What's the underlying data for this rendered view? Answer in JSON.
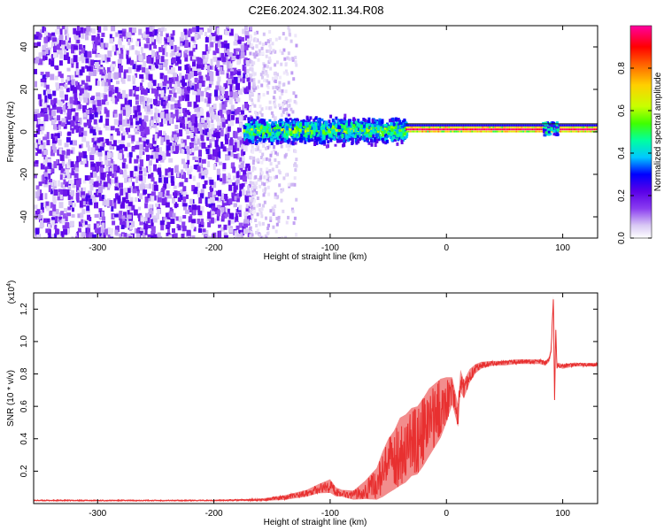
{
  "title": "C2E6.2024.302.11.34.R08",
  "chart_data": [
    {
      "type": "heatmap",
      "xlabel": "Height of straight line (km)",
      "ylabel": "Frequency (Hz)",
      "xlim": [
        -355,
        130
      ],
      "ylim": [
        -50,
        50
      ],
      "x_ticks": [
        -300,
        -200,
        -100,
        0,
        100
      ],
      "y_ticks": [
        -40,
        -20,
        0,
        20,
        40
      ],
      "colorbar": {
        "label": "Normalized spectral amplitude",
        "ticks": [
          0.0,
          0.2,
          0.4,
          0.6,
          0.8
        ],
        "range": [
          0,
          1
        ],
        "colors": [
          "#ffffff",
          "#d8c8f4",
          "#8a3cf0",
          "#5a00e8",
          "#0000ff",
          "#00c8ff",
          "#00ffa0",
          "#40ff00",
          "#c8ff00",
          "#ffd000",
          "#ff6000",
          "#ff0000",
          "#ff00a0"
        ]
      },
      "regions": [
        {
          "x": [
            -355,
            -170
          ],
          "freq": [
            -50,
            50
          ],
          "amplitude": 0.12,
          "pattern": "broadband scattered noise"
        },
        {
          "x": [
            -170,
            -130
          ],
          "freq": [
            -50,
            50
          ],
          "amplitude": 0.06,
          "pattern": "faint noise"
        },
        {
          "x": [
            -175,
            -35
          ],
          "freq": [
            -9,
            9
          ],
          "amplitude": 0.35,
          "pattern": "concentrated band"
        },
        {
          "x": [
            -35,
            130
          ],
          "freq": [
            0,
            3
          ],
          "amplitude": 1.0,
          "pattern": "narrow tone near 2 Hz"
        },
        {
          "x": [
            82,
            95
          ],
          "freq": [
            -1,
            5
          ],
          "amplitude": 0.4,
          "pattern": "local disturbance"
        }
      ]
    },
    {
      "type": "line",
      "xlabel": "Height of straight line (km)",
      "ylabel": "SNR (10 * v/v)",
      "y_multiplier": "(x10^4)",
      "y_mult_base": "(x10",
      "y_mult_exp": "4",
      "y_mult_close": ")",
      "xlim": [
        -355,
        130
      ],
      "ylim": [
        0,
        1.3
      ],
      "x_ticks": [
        -300,
        -200,
        -100,
        0,
        100
      ],
      "y_ticks": [
        0.2,
        0.4,
        0.6,
        0.8,
        1.0,
        1.2
      ],
      "color": "#e83030",
      "x": [
        -355,
        -300,
        -250,
        -200,
        -160,
        -140,
        -120,
        -110,
        -100,
        -95,
        -90,
        -80,
        -70,
        -60,
        -55,
        -50,
        -45,
        -40,
        -35,
        -30,
        -25,
        -20,
        -15,
        -10,
        -5,
        0,
        5,
        10,
        12,
        15,
        20,
        25,
        30,
        40,
        50,
        60,
        70,
        80,
        85,
        88,
        90,
        92,
        93,
        94,
        95,
        96,
        100,
        110,
        120,
        130
      ],
      "y": [
        0.02,
        0.02,
        0.02,
        0.02,
        0.025,
        0.04,
        0.07,
        0.1,
        0.12,
        0.08,
        0.07,
        0.06,
        0.1,
        0.15,
        0.22,
        0.28,
        0.32,
        0.38,
        0.4,
        0.44,
        0.45,
        0.5,
        0.56,
        0.6,
        0.64,
        0.68,
        0.72,
        0.56,
        0.78,
        0.72,
        0.8,
        0.84,
        0.86,
        0.87,
        0.87,
        0.88,
        0.88,
        0.88,
        0.87,
        0.89,
        0.95,
        1.28,
        0.65,
        1.1,
        0.85,
        0.86,
        0.85,
        0.86,
        0.86,
        0.86
      ],
      "spread": [
        0.005,
        0.005,
        0.005,
        0.005,
        0.01,
        0.02,
        0.03,
        0.04,
        0.06,
        0.04,
        0.03,
        0.04,
        0.08,
        0.14,
        0.2,
        0.24,
        0.26,
        0.3,
        0.3,
        0.3,
        0.3,
        0.3,
        0.3,
        0.28,
        0.26,
        0.2,
        0.12,
        0.1,
        0.1,
        0.08,
        0.06,
        0.04,
        0.03,
        0.02,
        0.02,
        0.02,
        0.02,
        0.02,
        0.02,
        0.02,
        0.02,
        0.02,
        0.02,
        0.02,
        0.02,
        0.02,
        0.02,
        0.015,
        0.015,
        0.015
      ]
    }
  ]
}
